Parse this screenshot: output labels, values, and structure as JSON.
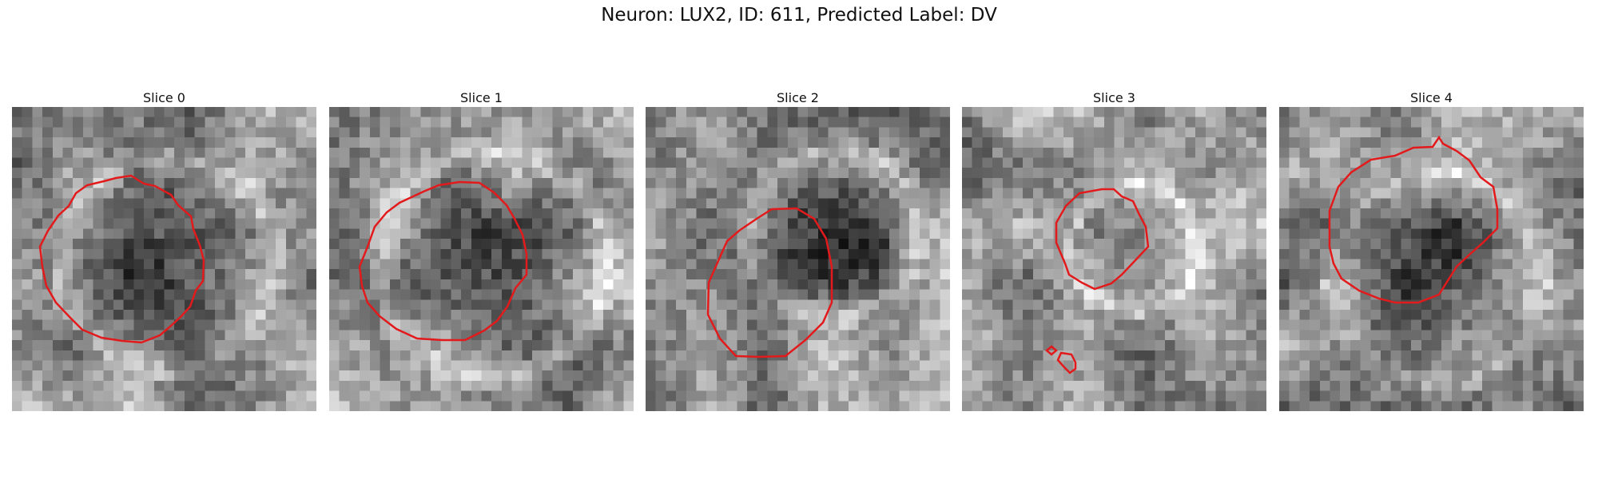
{
  "figure": {
    "title": "Neuron: LUX2, ID: 611, Predicted Label: DV",
    "contour_color": "#e31a1c",
    "colormap": "gray",
    "panels": [
      {
        "title": "Slice 0",
        "seed": 11,
        "blob_cx": 0.5,
        "blob_cy": 0.5,
        "blob_r": 0.3,
        "blob_dark": 0.32,
        "ring_light": 0.2
      },
      {
        "title": "Slice 1",
        "seed": 23,
        "blob_cx": 0.52,
        "blob_cy": 0.5,
        "blob_r": 0.32,
        "blob_dark": 0.22,
        "ring_light": 0.22
      },
      {
        "title": "Slice 2",
        "seed": 37,
        "blob_cx": 0.6,
        "blob_cy": 0.4,
        "blob_r": 0.24,
        "blob_dark": 0.45,
        "ring_light": 0.18
      },
      {
        "title": "Slice 3",
        "seed": 41,
        "blob_cx": 0.55,
        "blob_cy": 0.45,
        "blob_r": 0.18,
        "blob_dark": 0.1,
        "ring_light": 0.25
      },
      {
        "title": "Slice 4",
        "seed": 59,
        "blob_cx": 0.5,
        "blob_cy": 0.55,
        "blob_r": 0.3,
        "blob_dark": 0.3,
        "ring_light": 0.15
      }
    ]
  }
}
